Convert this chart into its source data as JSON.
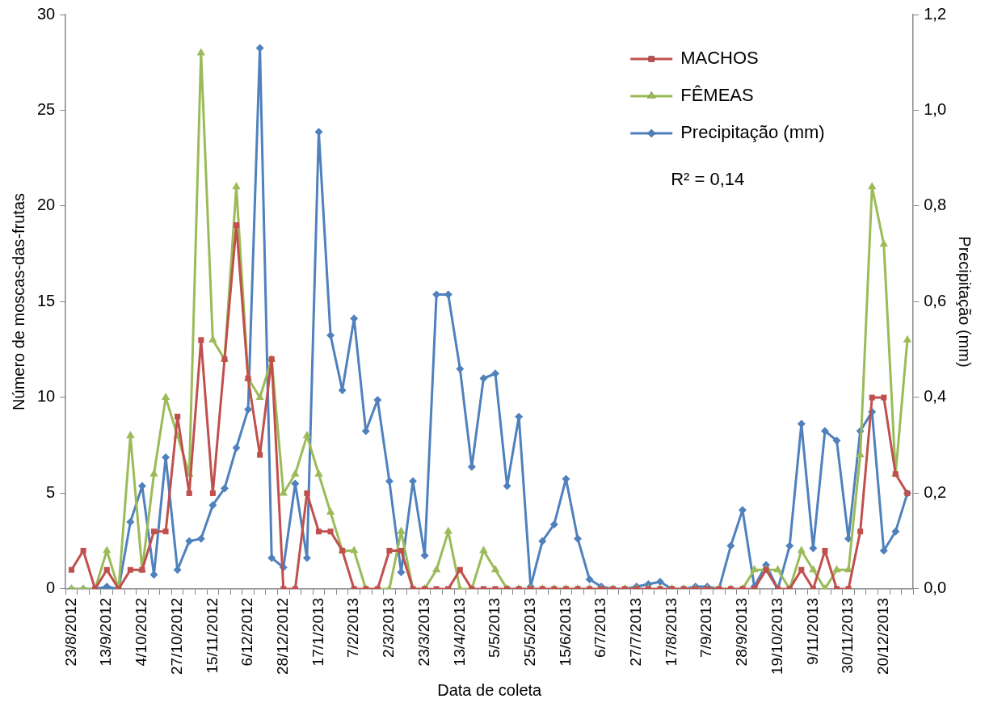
{
  "chart_data": {
    "type": "line",
    "xlabel": "Data de coleta",
    "ylabel": "Número de moscas-das-frutas",
    "y2label": "Precipitação (mm)",
    "categories": [
      "23/8/2012",
      null,
      null,
      "13/9/2012",
      null,
      null,
      "4/10/2012",
      null,
      null,
      "27/10/2012",
      null,
      null,
      "15/11/2012",
      null,
      null,
      "6/12/2012",
      null,
      null,
      "28/12/2012",
      null,
      null,
      "17/1/2013",
      null,
      null,
      "7/2/2013",
      null,
      null,
      "2/3/2013",
      null,
      null,
      "23/3/2013",
      null,
      null,
      "13/4/2013",
      null,
      null,
      "5/5/2013",
      null,
      null,
      "25/5/2013",
      null,
      null,
      "15/6/2013",
      null,
      null,
      "6/7/2013",
      null,
      null,
      "27/7/2013",
      null,
      null,
      "17/8/2013",
      null,
      null,
      "7/9/2013",
      null,
      null,
      "28/9/2013",
      null,
      null,
      "19/10/2013",
      null,
      null,
      "9/11/2013",
      null,
      null,
      "30/11/2013",
      null,
      null,
      "20/12/2013",
      null,
      null
    ],
    "series": [
      {
        "name": "MACHOS",
        "color": "#c0504d",
        "marker": "square",
        "values": [
          1,
          2,
          0,
          1,
          0,
          1,
          1,
          3,
          3,
          9,
          5,
          13,
          5,
          12,
          19,
          11,
          7,
          12,
          0,
          0,
          5,
          3,
          3,
          2,
          0,
          0,
          0,
          2,
          2,
          0,
          0,
          0,
          0,
          1,
          0,
          0,
          0,
          0,
          0,
          0,
          0,
          0,
          0,
          0,
          0,
          0,
          0,
          0,
          0,
          0,
          0,
          0,
          0,
          0,
          0,
          0,
          0,
          0,
          0,
          1,
          0,
          0,
          1,
          0,
          2,
          0,
          0,
          3,
          10,
          10,
          6,
          5
        ]
      },
      {
        "name": "FÊMEAS",
        "color": "#9bbb59",
        "marker": "triangle",
        "values": [
          0,
          0,
          0,
          2,
          0,
          8,
          1,
          6,
          10,
          8,
          6,
          28,
          13,
          12,
          21,
          11,
          10,
          12,
          5,
          6,
          8,
          6,
          4,
          2,
          2,
          0,
          0,
          0,
          3,
          0,
          0,
          1,
          3,
          0,
          0,
          2,
          1,
          0,
          0,
          0,
          0,
          0,
          0,
          0,
          0,
          0,
          0,
          0,
          0,
          0,
          0,
          0,
          0,
          0,
          0,
          0,
          0,
          0,
          1,
          1,
          1,
          0,
          2,
          1,
          0,
          1,
          1,
          7,
          21,
          18,
          6,
          13
        ]
      },
      {
        "name": "Precipitação (mm)",
        "color": "#4f81bd",
        "marker": "diamond",
        "axis": "y2",
        "values": [
          0,
          0,
          0,
          0.005,
          0,
          0.14,
          0.215,
          0.03,
          0.275,
          0.04,
          0.1,
          0.105,
          0.175,
          0.21,
          0.295,
          0.375,
          1.13,
          0.065,
          0.045,
          0.22,
          0.065,
          0.955,
          0.53,
          0.415,
          0.565,
          0.33,
          0.395,
          0.225,
          0.035,
          0.225,
          0.07,
          0.615,
          0.615,
          0.46,
          0.255,
          0.44,
          0.45,
          0.215,
          0.36,
          0.005,
          0.1,
          0.135,
          0.23,
          0.105,
          0.02,
          0.005,
          0,
          0,
          0.005,
          0.01,
          0.015,
          0,
          0,
          0.005,
          0.005,
          0,
          0.09,
          0.165,
          0.005,
          0.05,
          0,
          0.09,
          0.345,
          0.085,
          0.33,
          0.31,
          0.105,
          0.33,
          0.37,
          0.08,
          0.12,
          0.2
        ]
      }
    ],
    "ylim": [
      0,
      30
    ],
    "yticks": [
      0,
      5,
      10,
      15,
      20,
      25,
      30
    ],
    "y2lim": [
      0,
      1.2
    ],
    "y2ticks": [
      {
        "value": 0,
        "label": "0,0"
      },
      {
        "value": 0.2,
        "label": "0,2"
      },
      {
        "value": 0.4,
        "label": "0,4"
      },
      {
        "value": 0.6,
        "label": "0,6"
      },
      {
        "value": 0.8,
        "label": "0,8"
      },
      {
        "value": 1.0,
        "label": "1,0"
      },
      {
        "value": 1.2,
        "label": "1,2"
      }
    ],
    "annotations": [
      "R² = 0,14"
    ],
    "legend": "top right",
    "grid": false,
    "line_style": "solid"
  }
}
